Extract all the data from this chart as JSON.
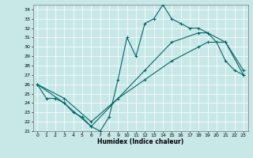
{
  "xlabel": "Humidex (Indice chaleur)",
  "bg_color": "#c8e8e8",
  "line_color": "#006666",
  "xlim": [
    -0.5,
    23.5
  ],
  "ylim": [
    21,
    34.5
  ],
  "yticks": [
    21,
    22,
    23,
    24,
    25,
    26,
    27,
    28,
    29,
    30,
    31,
    32,
    33,
    34
  ],
  "xticks": [
    0,
    1,
    2,
    3,
    4,
    5,
    6,
    7,
    8,
    9,
    10,
    11,
    12,
    13,
    14,
    15,
    16,
    17,
    18,
    19,
    20,
    21,
    22,
    23
  ],
  "curve1_x": [
    0,
    1,
    2,
    3,
    4,
    5,
    6,
    7,
    8,
    9,
    10,
    11,
    12,
    13,
    14,
    15,
    16,
    17,
    18,
    19,
    20,
    21,
    22,
    23
  ],
  "curve1_y": [
    26.0,
    24.5,
    24.5,
    24.0,
    23.0,
    22.5,
    21.5,
    21.0,
    22.5,
    26.5,
    31.0,
    29.0,
    32.5,
    33.0,
    34.5,
    33.0,
    32.5,
    32.0,
    32.0,
    31.5,
    30.5,
    28.5,
    27.5,
    27.0
  ],
  "curve2_x": [
    0,
    3,
    6,
    9,
    12,
    15,
    18,
    19,
    21,
    23
  ],
  "curve2_y": [
    26.0,
    24.5,
    22.0,
    24.5,
    27.5,
    30.5,
    31.5,
    31.5,
    30.5,
    27.0
  ],
  "curve3_x": [
    0,
    3,
    6,
    9,
    12,
    15,
    18,
    19,
    21,
    23
  ],
  "curve3_y": [
    26.0,
    24.0,
    21.5,
    24.5,
    26.5,
    28.5,
    30.0,
    30.5,
    30.5,
    27.5
  ]
}
